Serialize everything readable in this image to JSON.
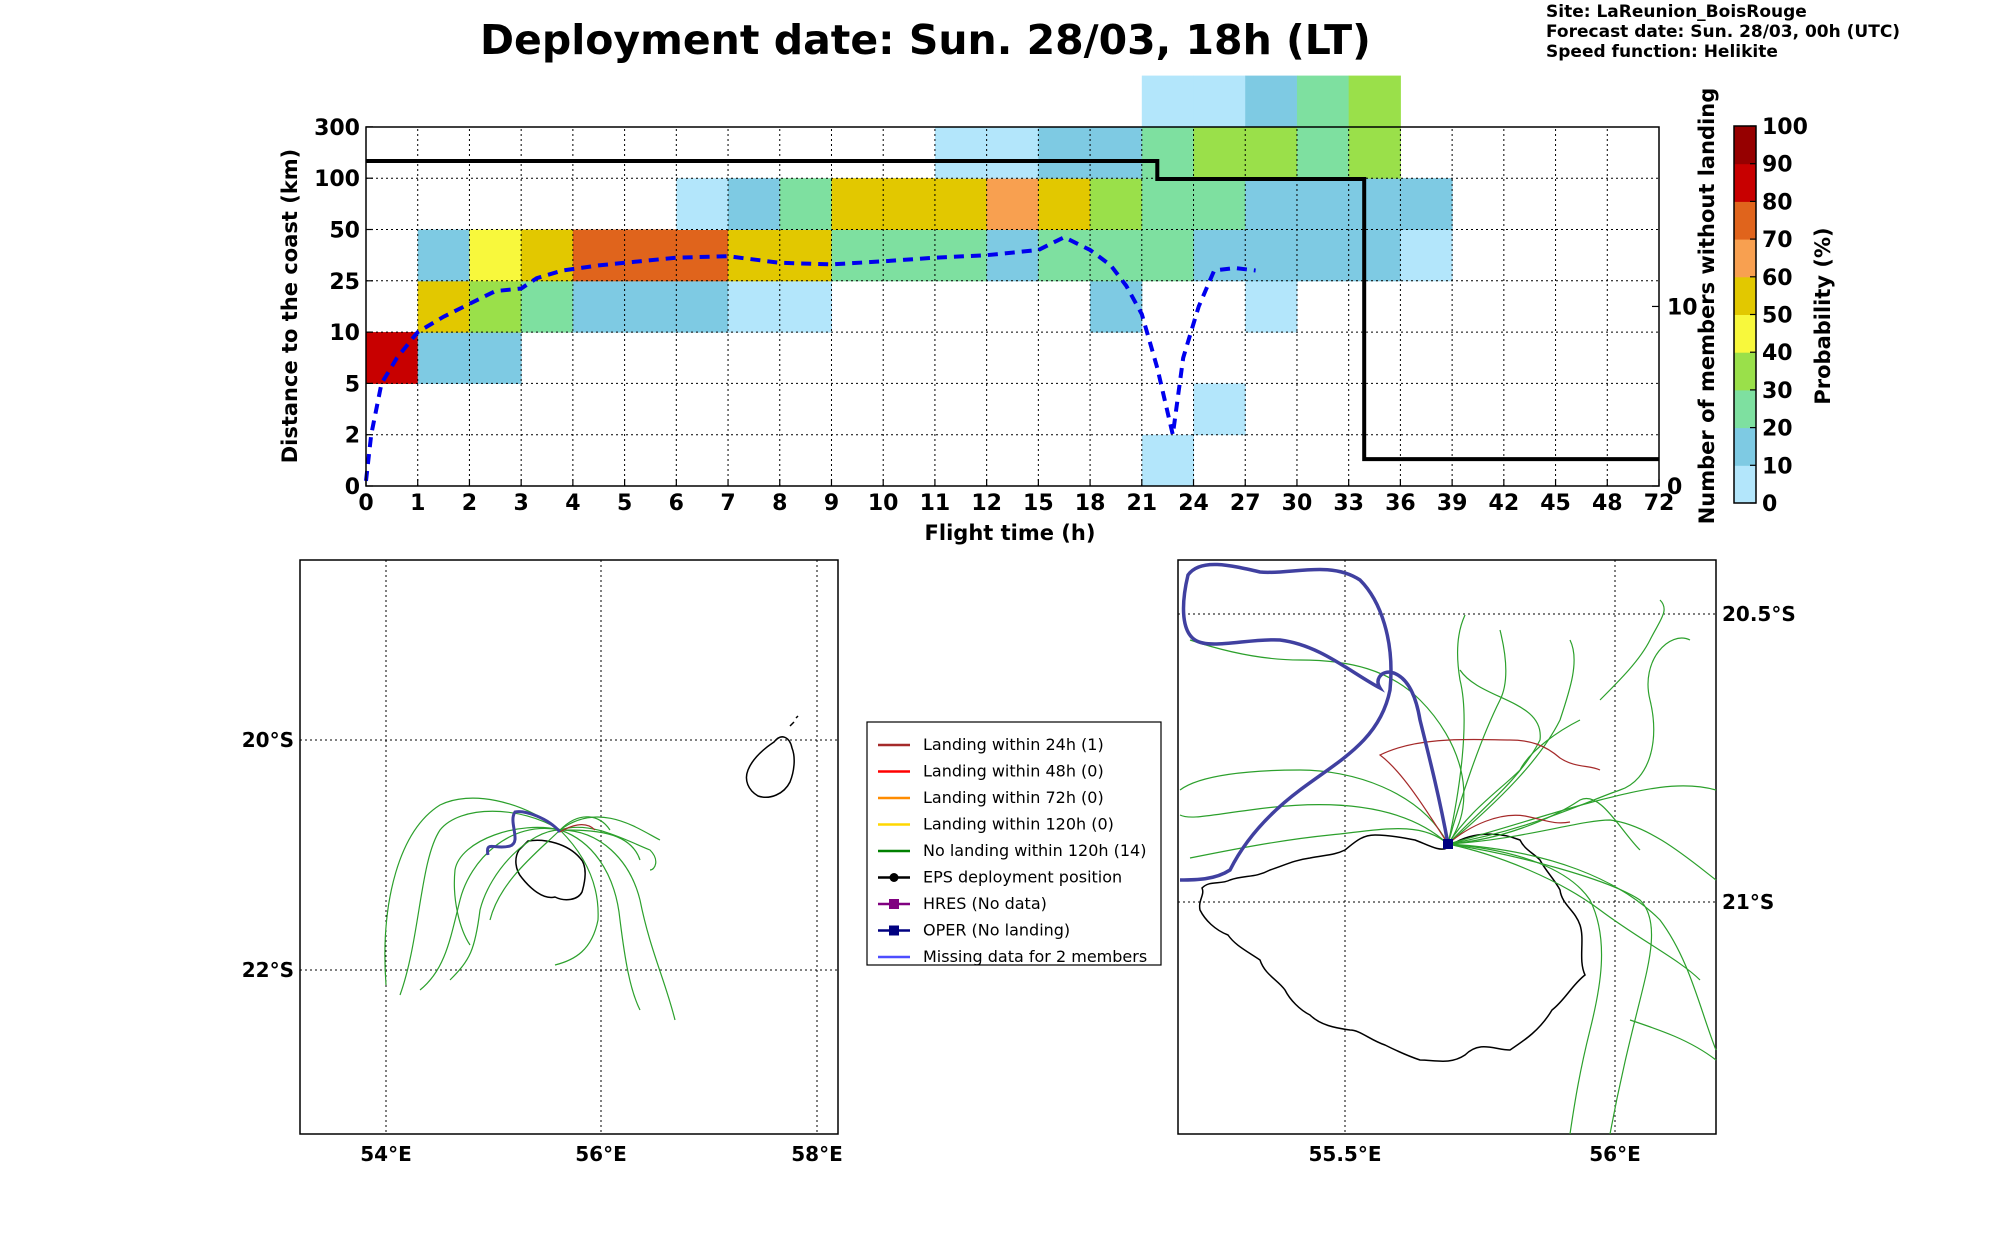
{
  "title": "Deployment date: Sun. 28/03, 18h (LT)",
  "meta": {
    "site": "Site: LaReunion_BoisRouge",
    "forecast": "Forecast date: Sun. 28/03, 00h (UTC)",
    "speed": "Speed function: Helikite"
  },
  "chart_data": [
    {
      "type": "heatmap",
      "xlabel": "Flight time (h)",
      "ylabel": "Distance to the coast (km)",
      "y2label": "Number of members without landing",
      "colorbar_label": "Probability (%)",
      "x_ticks": [
        "0",
        "1",
        "2",
        "3",
        "4",
        "5",
        "6",
        "7",
        "8",
        "9",
        "10",
        "11",
        "12",
        "15",
        "18",
        "21",
        "24",
        "27",
        "30",
        "33",
        "36",
        "39",
        "42",
        "45",
        "48",
        "72"
      ],
      "y_ticks": [
        "0",
        "2",
        "5",
        "10",
        "25",
        "50",
        "100",
        "300"
      ],
      "y2_ticks": [
        "0",
        "10"
      ],
      "y2lim": [
        0,
        20
      ],
      "colorbar_ticks": [
        "0",
        "10",
        "20",
        "30",
        "40",
        "50",
        "60",
        "70",
        "80",
        "90",
        "100"
      ],
      "colors": {
        "0": "#b3e6fb",
        "10": "#7ecae3",
        "20": "#7ee0a0",
        "30": "#9ae04a",
        "40": "#f8f83c",
        "50": "#e2c800",
        "60": "#f8a050",
        "70": "#e0641c",
        "80": "#c80000",
        "90": "#960000",
        "100": "#640014"
      },
      "grid": true,
      "cells": [
        {
          "xi": 0,
          "yi": 2,
          "p": 80
        },
        {
          "xi": 1,
          "yi": 2,
          "p": 10
        },
        {
          "xi": 2,
          "yi": 2,
          "p": 10
        },
        {
          "xi": 1,
          "yi": 3,
          "p": 50
        },
        {
          "xi": 2,
          "yi": 3,
          "p": 30
        },
        {
          "xi": 3,
          "yi": 3,
          "p": 20
        },
        {
          "xi": 4,
          "yi": 3,
          "p": 10
        },
        {
          "xi": 5,
          "yi": 3,
          "p": 10
        },
        {
          "xi": 6,
          "yi": 3,
          "p": 10
        },
        {
          "xi": 7,
          "yi": 3,
          "p": 0
        },
        {
          "xi": 8,
          "yi": 3,
          "p": 0
        },
        {
          "xi": 14,
          "yi": 3,
          "p": 10
        },
        {
          "xi": 17,
          "yi": 3,
          "p": 0
        },
        {
          "xi": 1,
          "yi": 4,
          "p": 10
        },
        {
          "xi": 2,
          "yi": 4,
          "p": 40
        },
        {
          "xi": 3,
          "yi": 4,
          "p": 50
        },
        {
          "xi": 4,
          "yi": 4,
          "p": 70
        },
        {
          "xi": 5,
          "yi": 4,
          "p": 70
        },
        {
          "xi": 6,
          "yi": 4,
          "p": 70
        },
        {
          "xi": 7,
          "yi": 4,
          "p": 50
        },
        {
          "xi": 8,
          "yi": 4,
          "p": 50
        },
        {
          "xi": 9,
          "yi": 4,
          "p": 20
        },
        {
          "xi": 10,
          "yi": 4,
          "p": 20
        },
        {
          "xi": 11,
          "yi": 4,
          "p": 20
        },
        {
          "xi": 12,
          "yi": 4,
          "p": 10
        },
        {
          "xi": 13,
          "yi": 4,
          "p": 20
        },
        {
          "xi": 14,
          "yi": 4,
          "p": 20
        },
        {
          "xi": 15,
          "yi": 4,
          "p": 20
        },
        {
          "xi": 16,
          "yi": 4,
          "p": 10
        },
        {
          "xi": 17,
          "yi": 4,
          "p": 10
        },
        {
          "xi": 18,
          "yi": 4,
          "p": 10
        },
        {
          "xi": 19,
          "yi": 4,
          "p": 10
        },
        {
          "xi": 20,
          "yi": 4,
          "p": 0
        },
        {
          "xi": 6,
          "yi": 5,
          "p": 0
        },
        {
          "xi": 7,
          "yi": 5,
          "p": 10
        },
        {
          "xi": 8,
          "yi": 5,
          "p": 20
        },
        {
          "xi": 9,
          "yi": 5,
          "p": 50
        },
        {
          "xi": 10,
          "yi": 5,
          "p": 50
        },
        {
          "xi": 11,
          "yi": 5,
          "p": 50
        },
        {
          "xi": 12,
          "yi": 5,
          "p": 60
        },
        {
          "xi": 13,
          "yi": 5,
          "p": 50
        },
        {
          "xi": 14,
          "yi": 5,
          "p": 30
        },
        {
          "xi": 15,
          "yi": 5,
          "p": 20
        },
        {
          "xi": 16,
          "yi": 5,
          "p": 20
        },
        {
          "xi": 17,
          "yi": 5,
          "p": 10
        },
        {
          "xi": 18,
          "yi": 5,
          "p": 10
        },
        {
          "xi": 19,
          "yi": 5,
          "p": 10
        },
        {
          "xi": 20,
          "yi": 5,
          "p": 10
        },
        {
          "xi": 11,
          "yi": 6,
          "p": 0
        },
        {
          "xi": 12,
          "yi": 6,
          "p": 0
        },
        {
          "xi": 13,
          "yi": 6,
          "p": 10
        },
        {
          "xi": 14,
          "yi": 6,
          "p": 10
        },
        {
          "xi": 15,
          "yi": 6,
          "p": 20
        },
        {
          "xi": 16,
          "yi": 6,
          "p": 30
        },
        {
          "xi": 17,
          "yi": 6,
          "p": 30
        },
        {
          "xi": 18,
          "yi": 6,
          "p": 20
        },
        {
          "xi": 19,
          "yi": 6,
          "p": 30
        },
        {
          "xi": 15,
          "yi": 7,
          "p": 0
        },
        {
          "xi": 16,
          "yi": 7,
          "p": 0
        },
        {
          "xi": 17,
          "yi": 7,
          "p": 10
        },
        {
          "xi": 18,
          "yi": 7,
          "p": 20
        },
        {
          "xi": 19,
          "yi": 7,
          "p": 30
        },
        {
          "xi": 16,
          "yi": 1,
          "p": 0
        },
        {
          "xi": 15,
          "yi": 0,
          "p": 0
        }
      ],
      "series": [
        {
          "name": "",
          "style": "dashed",
          "color": "#0000ee",
          "points": [
            [
              0,
              0.1
            ],
            [
              0.1,
              1
            ],
            [
              0.3,
              2
            ],
            [
              0.6,
              2.5
            ],
            [
              1,
              3
            ],
            [
              1.5,
              3.3
            ],
            [
              2,
              3.55
            ],
            [
              2.5,
              3.8
            ],
            [
              3,
              3.85
            ],
            [
              3.3,
              4.05
            ],
            [
              3.8,
              4.2
            ],
            [
              4.5,
              4.3
            ],
            [
              5,
              4.35
            ],
            [
              6,
              4.45
            ],
            [
              7,
              4.48
            ],
            [
              8,
              4.35
            ],
            [
              9,
              4.32
            ],
            [
              10,
              4.38
            ],
            [
              11,
              4.45
            ],
            [
              12,
              4.5
            ],
            [
              12.5,
              4.55
            ],
            [
              13,
              4.6
            ],
            [
              13.5,
              4.85
            ],
            [
              14,
              4.6
            ],
            [
              14.4,
              4.3
            ],
            [
              14.7,
              3.9
            ],
            [
              15,
              3.35
            ],
            [
              15.3,
              2.3
            ],
            [
              15.6,
              1.0
            ],
            [
              15.8,
              2.5
            ],
            [
              16.1,
              3.5
            ],
            [
              16.4,
              4.2
            ],
            [
              16.8,
              4.25
            ],
            [
              17.2,
              4.2
            ]
          ]
        },
        {
          "name": "",
          "style": "step",
          "color": "#000000",
          "y_axis": "right",
          "points": [
            [
              0,
              18.1
            ],
            [
              15.3,
              18.1
            ],
            [
              15.3,
              17.1
            ],
            [
              19.3,
              17.1
            ],
            [
              19.3,
              1.5
            ],
            [
              25,
              1.5
            ]
          ]
        }
      ]
    },
    {
      "type": "map",
      "lon_ticks": [
        "54°E",
        "56°E",
        "58°E"
      ],
      "lat_ticks": [
        "20°S",
        "22°S"
      ]
    },
    {
      "type": "map",
      "lon_ticks": [
        "55.5°E",
        "56°E"
      ],
      "lat_ticks": [
        "20.5°S",
        "21°S"
      ]
    }
  ],
  "legend": [
    {
      "label": "Landing within 24h (1)",
      "color": "#a52a2a",
      "marker": "none"
    },
    {
      "label": "Landing within 48h (0)",
      "color": "#ff0000",
      "marker": "none"
    },
    {
      "label": "Landing within 72h (0)",
      "color": "#ff8c00",
      "marker": "none"
    },
    {
      "label": "Landing within 120h (0)",
      "color": "#ffd700",
      "marker": "none"
    },
    {
      "label": "No landing within 120h (14)",
      "color": "#008000",
      "marker": "none"
    },
    {
      "label": "EPS deployment position",
      "color": "#000000",
      "marker": "circle"
    },
    {
      "label": "HRES (No data)",
      "color": "#800080",
      "marker": "square"
    },
    {
      "label": "OPER (No landing)",
      "color": "#000080",
      "marker": "square"
    },
    {
      "label": "Missing data for 2 members",
      "color": "#4d4dff",
      "marker": "none"
    }
  ]
}
